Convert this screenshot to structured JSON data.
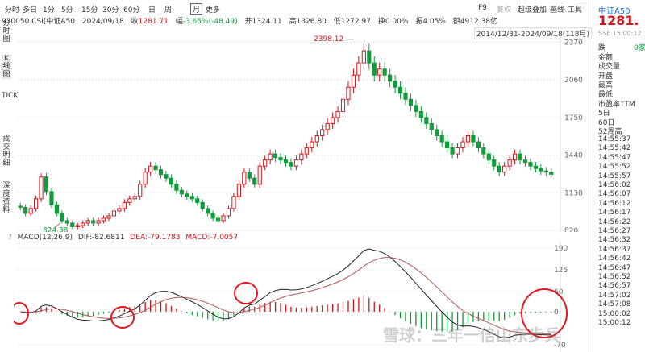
{
  "toolbar": {
    "periods": [
      "分时",
      "多日",
      "1分",
      "5分",
      "15分",
      "30分",
      "60分",
      "日",
      "周",
      "月",
      "更多"
    ],
    "active_period": "月",
    "right": [
      {
        "label": "F9",
        "dim": false
      },
      {
        "label": "复权",
        "dim": true
      },
      {
        "label": "超级叠加",
        "dim": false
      },
      {
        "label": "画线",
        "dim": false
      },
      {
        "label": "工具",
        "dim": false
      }
    ],
    "heart_icon": "heart-icon"
  },
  "quote": {
    "code": "930050.CSI[中证A50",
    "date": "2024/09/18",
    "close_label": "收",
    "close": "1281.71",
    "change_label": "幅",
    "change": "-3.65%(-48.49)",
    "open_label": "开",
    "open": "1324.11",
    "high_label": "高",
    "high": "1326.80",
    "low_label": "低",
    "low": "1272.97",
    "turnover_label": "换",
    "turnover": "0.00%",
    "amp_label": "振",
    "amp": "4.05%",
    "amount_label": "额",
    "amount": "4912.38亿"
  },
  "range_text": "2014/12/31-2024/09/18(118月)",
  "sidenav": [
    {
      "label": "分时图",
      "active": false
    },
    {
      "label": "K线图",
      "active": true
    },
    {
      "label": "TICK",
      "active": false
    },
    {
      "label": "成交明细",
      "active": false
    },
    {
      "label": "深度资料",
      "active": false
    }
  ],
  "right_panel": {
    "name": "中证A50",
    "price": "1281.",
    "sub": "SSE 15:00:12",
    "fields": [
      {
        "label": "跌",
        "value": "0家"
      },
      {
        "label": "金额",
        "value": ""
      },
      {
        "label": "成交量",
        "value": ""
      },
      {
        "label": "开盘",
        "value": ""
      },
      {
        "label": "最高",
        "value": ""
      },
      {
        "label": "最低",
        "value": ""
      },
      {
        "label": "市盈率TTM",
        "value": ""
      },
      {
        "label": "5日",
        "value": ""
      },
      {
        "label": "60日",
        "value": ""
      },
      {
        "label": "52周高",
        "value": ""
      }
    ],
    "times": [
      "14:55:37",
      "14:55:42",
      "14:55:47",
      "14:55:52",
      "14:55:57",
      "14:56:02",
      "14:56:07",
      "14:56:12",
      "14:56:17",
      "14:56:22",
      "14:56:27",
      "14:56:32",
      "14:56:37",
      "14:56:42",
      "14:56:47",
      "14:56:52",
      "14:56:57",
      "14:57:02",
      "14:57:08",
      "15:00:02",
      "15:00:12"
    ]
  },
  "macd": {
    "question": "?",
    "name": "MACD(12,26,9)",
    "dif_label": "DIF:",
    "dif": "-82.6811",
    "dea_label": "DEA:",
    "dea": "-79.1783",
    "macd_label": "MACD:",
    "macd": "-7.0057",
    "axis": [
      "190",
      "125",
      "60",
      "0",
      "-70"
    ]
  },
  "watermark": "雪球：三年一倍山东步兵",
  "colors": {
    "up": "#d4141b",
    "down": "#0f9d38",
    "circle": "#e3161d",
    "dif": "#222222",
    "dea": "#b5575a"
  },
  "chart_data": {
    "type": "candlestick",
    "period": "monthly",
    "y_axis_ticks": [
      "2370",
      "2060",
      "1750",
      "1440",
      "1130",
      "820"
    ],
    "ylim": [
      820,
      2400
    ],
    "max_label": "2398.12",
    "min_label": "824.38",
    "close_path": [
      1010,
      960,
      1000,
      1080,
      1260,
      1140,
      1030,
      960,
      900,
      880,
      850,
      860,
      880,
      900,
      880,
      900,
      920,
      940,
      980,
      1000,
      1050,
      1080,
      1100,
      1200,
      1300,
      1350,
      1320,
      1280,
      1250,
      1200,
      1150,
      1120,
      1100,
      1080,
      1050,
      1000,
      960,
      920,
      900,
      940,
      1000,
      1100,
      1200,
      1300,
      1250,
      1200,
      1350,
      1400,
      1450,
      1420,
      1400,
      1380,
      1350,
      1400,
      1450,
      1500,
      1550,
      1600,
      1650,
      1700,
      1750,
      1800,
      1900,
      2000,
      2100,
      2200,
      2300,
      2200,
      2100,
      2150,
      2100,
      2050,
      2000,
      1950,
      1900,
      1850,
      1800,
      1750,
      1700,
      1650,
      1600,
      1550,
      1500,
      1450,
      1500,
      1550,
      1600,
      1550,
      1500,
      1450,
      1400,
      1350,
      1300,
      1350,
      1400,
      1450,
      1400,
      1380,
      1350,
      1330,
      1310,
      1300,
      1282
    ]
  }
}
